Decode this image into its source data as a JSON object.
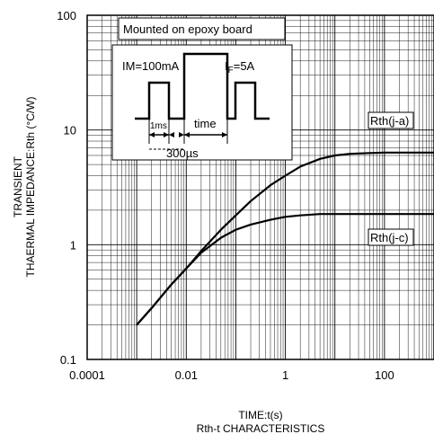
{
  "chart_data": {
    "type": "line",
    "title": "Rth-t CHARACTERISTICS",
    "xlabel": "TIME:t(s)",
    "ylabel_lines": [
      "TRANSIENT",
      "THAERMAL IMPEDANCE:Rth (°C/W)"
    ],
    "x_scale": "log",
    "y_scale": "log",
    "xlim": [
      0.0001,
      1000
    ],
    "ylim": [
      0.1,
      100
    ],
    "x_tick_labels": [
      "0.0001",
      "0.01",
      "1",
      "100"
    ],
    "y_tick_labels": [
      "0.1",
      "1",
      "10",
      "100"
    ],
    "grid": true,
    "series": [
      {
        "name": "Rth(j-a)",
        "x": [
          0.001,
          0.002,
          0.005,
          0.01,
          0.02,
          0.05,
          0.1,
          0.2,
          0.5,
          1,
          2,
          5,
          10,
          20,
          50,
          100,
          200,
          1000
        ],
        "y": [
          0.2,
          0.28,
          0.45,
          0.62,
          0.88,
          1.35,
          1.8,
          2.4,
          3.3,
          4.0,
          4.8,
          5.6,
          6.0,
          6.2,
          6.3,
          6.35,
          6.35,
          6.35
        ]
      },
      {
        "name": "Rth(j-c)",
        "x": [
          0.001,
          0.002,
          0.005,
          0.01,
          0.02,
          0.05,
          0.1,
          0.2,
          0.5,
          1,
          2,
          5,
          10,
          20,
          50,
          100,
          200,
          1000
        ],
        "y": [
          0.2,
          0.28,
          0.45,
          0.62,
          0.85,
          1.15,
          1.35,
          1.5,
          1.65,
          1.75,
          1.8,
          1.85,
          1.85,
          1.85,
          1.85,
          1.85,
          1.85,
          1.85
        ]
      }
    ],
    "annotations": {
      "board_note": "Mounted on epoxy board",
      "im_label": "IM=100mA",
      "if_label_main": "I",
      "if_label_sub": "F",
      "if_label_value": "=5A",
      "ms_label": "1ms",
      "time_label": "time",
      "us_label": "300µs"
    }
  }
}
